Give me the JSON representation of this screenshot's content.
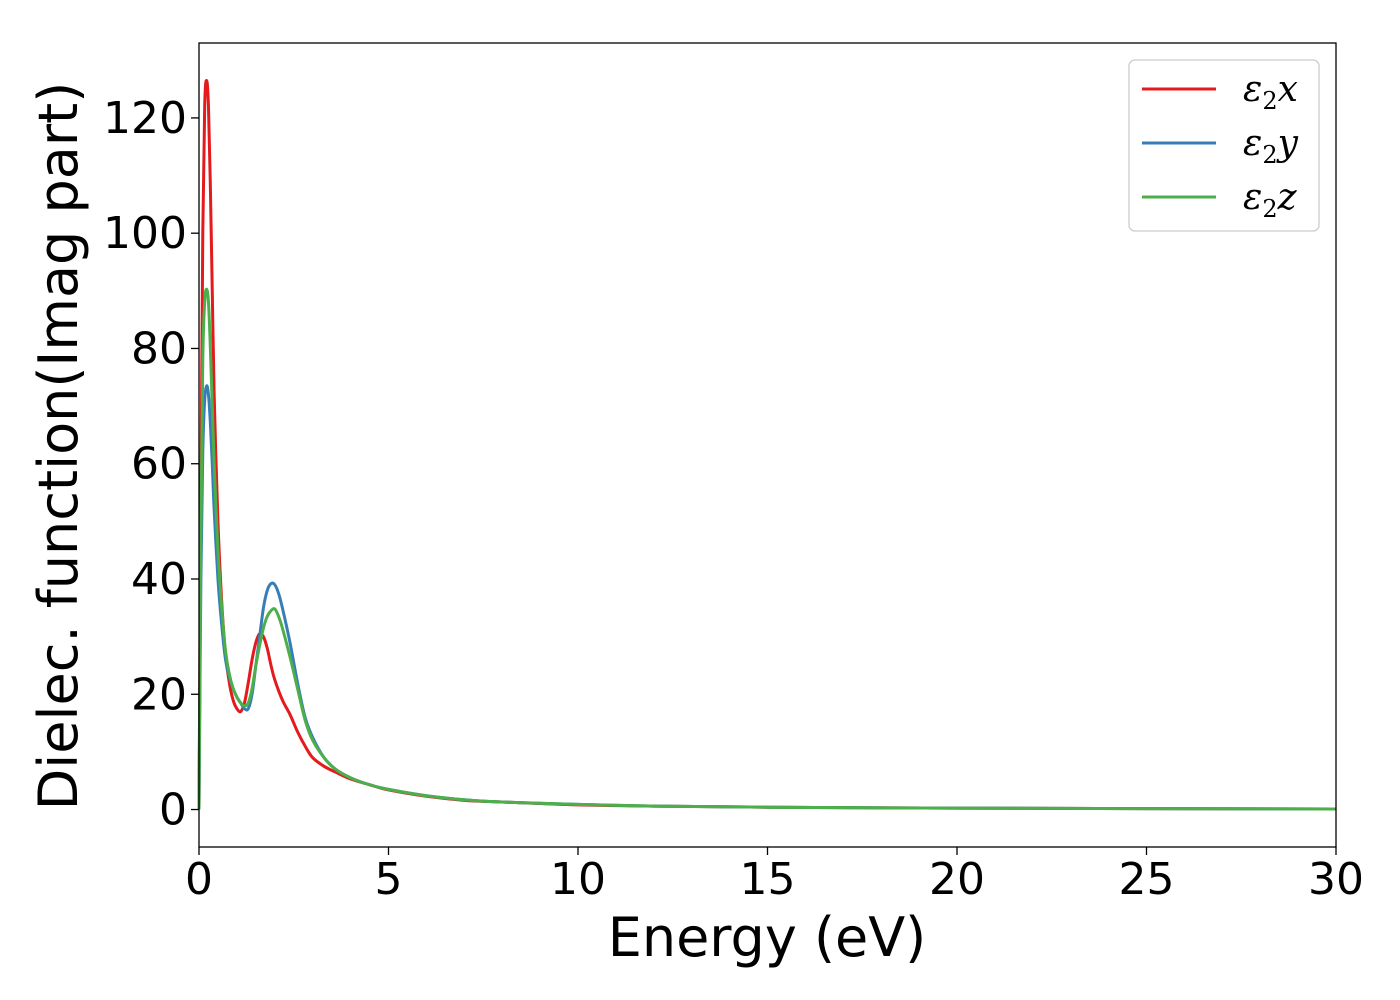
{
  "chart_data": {
    "type": "line",
    "title": "",
    "xlabel": "Energy (eV)",
    "ylabel": "Dielec. function(Imag part)",
    "xlim": [
      0,
      30
    ],
    "ylim": [
      -6.5,
      133
    ],
    "xticks": [
      0,
      5,
      10,
      15,
      20,
      25,
      30
    ],
    "yticks": [
      0,
      20,
      40,
      60,
      80,
      100,
      120
    ],
    "grid": false,
    "legend_position": "top-right",
    "series": [
      {
        "name": "ε2x",
        "legend_base": "ε",
        "legend_sub": "2",
        "legend_var": "x",
        "color": "#e41a1c",
        "x": [
          0,
          0.05,
          0.1,
          0.15,
          0.2,
          0.25,
          0.3,
          0.35,
          0.4,
          0.5,
          0.6,
          0.7,
          0.8,
          0.9,
          1.0,
          1.1,
          1.2,
          1.3,
          1.4,
          1.5,
          1.6,
          1.7,
          1.8,
          1.9,
          2.0,
          2.2,
          2.4,
          2.6,
          2.8,
          3.0,
          3.3,
          3.6,
          4.0,
          4.5,
          5.0,
          6.0,
          7.0,
          8.0,
          10.0,
          12.0,
          15.0,
          20.0,
          25.0,
          30.0
        ],
        "y": [
          0,
          55,
          100,
          122,
          126.5,
          122,
          108,
          90,
          72,
          50,
          36,
          27,
          22,
          19,
          17.5,
          17,
          18.5,
          22,
          26,
          29,
          30.5,
          30,
          28,
          25,
          22.5,
          19,
          16.5,
          13.5,
          11,
          9,
          7.5,
          6.5,
          5.3,
          4.3,
          3.4,
          2.3,
          1.6,
          1.3,
          0.8,
          0.6,
          0.4,
          0.25,
          0.15,
          0.1
        ]
      },
      {
        "name": "ε2y",
        "legend_base": "ε",
        "legend_sub": "2",
        "legend_var": "y",
        "color": "#377eb8",
        "x": [
          0,
          0.05,
          0.1,
          0.15,
          0.2,
          0.25,
          0.3,
          0.35,
          0.4,
          0.5,
          0.6,
          0.7,
          0.8,
          0.9,
          1.0,
          1.1,
          1.2,
          1.3,
          1.4,
          1.5,
          1.6,
          1.7,
          1.8,
          1.9,
          2.0,
          2.1,
          2.2,
          2.4,
          2.6,
          2.8,
          3.0,
          3.3,
          3.6,
          4.0,
          4.5,
          5.0,
          6.0,
          7.0,
          8.0,
          10.0,
          12.0,
          15.0,
          20.0,
          25.0,
          30.0
        ],
        "y": [
          0,
          40,
          62,
          71,
          73.5,
          72,
          67,
          60,
          52,
          40,
          32,
          26,
          23,
          21,
          19.5,
          18.5,
          17.5,
          17.5,
          20,
          25,
          30,
          35,
          38,
          39.2,
          39,
          37.5,
          35,
          29,
          22,
          16,
          12.5,
          9,
          7,
          5.5,
          4.3,
          3.5,
          2.4,
          1.7,
          1.3,
          0.9,
          0.6,
          0.4,
          0.25,
          0.15,
          0.1
        ]
      },
      {
        "name": "ε2z",
        "legend_base": "ε",
        "legend_sub": "2",
        "legend_var": "z",
        "color": "#4daf4a",
        "x": [
          0,
          0.05,
          0.1,
          0.15,
          0.2,
          0.25,
          0.3,
          0.35,
          0.4,
          0.5,
          0.6,
          0.7,
          0.8,
          0.9,
          1.0,
          1.1,
          1.2,
          1.3,
          1.4,
          1.5,
          1.6,
          1.7,
          1.8,
          1.9,
          2.0,
          2.1,
          2.2,
          2.4,
          2.6,
          2.8,
          3.0,
          3.3,
          3.6,
          4.0,
          4.5,
          5.0,
          6.0,
          7.0,
          8.0,
          10.0,
          12.0,
          15.0,
          20.0,
          25.0,
          30.0
        ],
        "y": [
          0,
          48,
          78,
          88,
          90.3,
          88,
          80,
          70,
          60,
          45,
          35,
          27.5,
          23.5,
          21,
          19.5,
          18.5,
          18,
          18.5,
          21,
          25,
          28.5,
          31.5,
          33.5,
          34.5,
          34.8,
          33.5,
          31.5,
          26.5,
          21,
          15.5,
          12,
          9,
          7,
          5.5,
          4.3,
          3.5,
          2.4,
          1.7,
          1.3,
          0.9,
          0.6,
          0.4,
          0.25,
          0.15,
          0.1
        ]
      }
    ]
  }
}
